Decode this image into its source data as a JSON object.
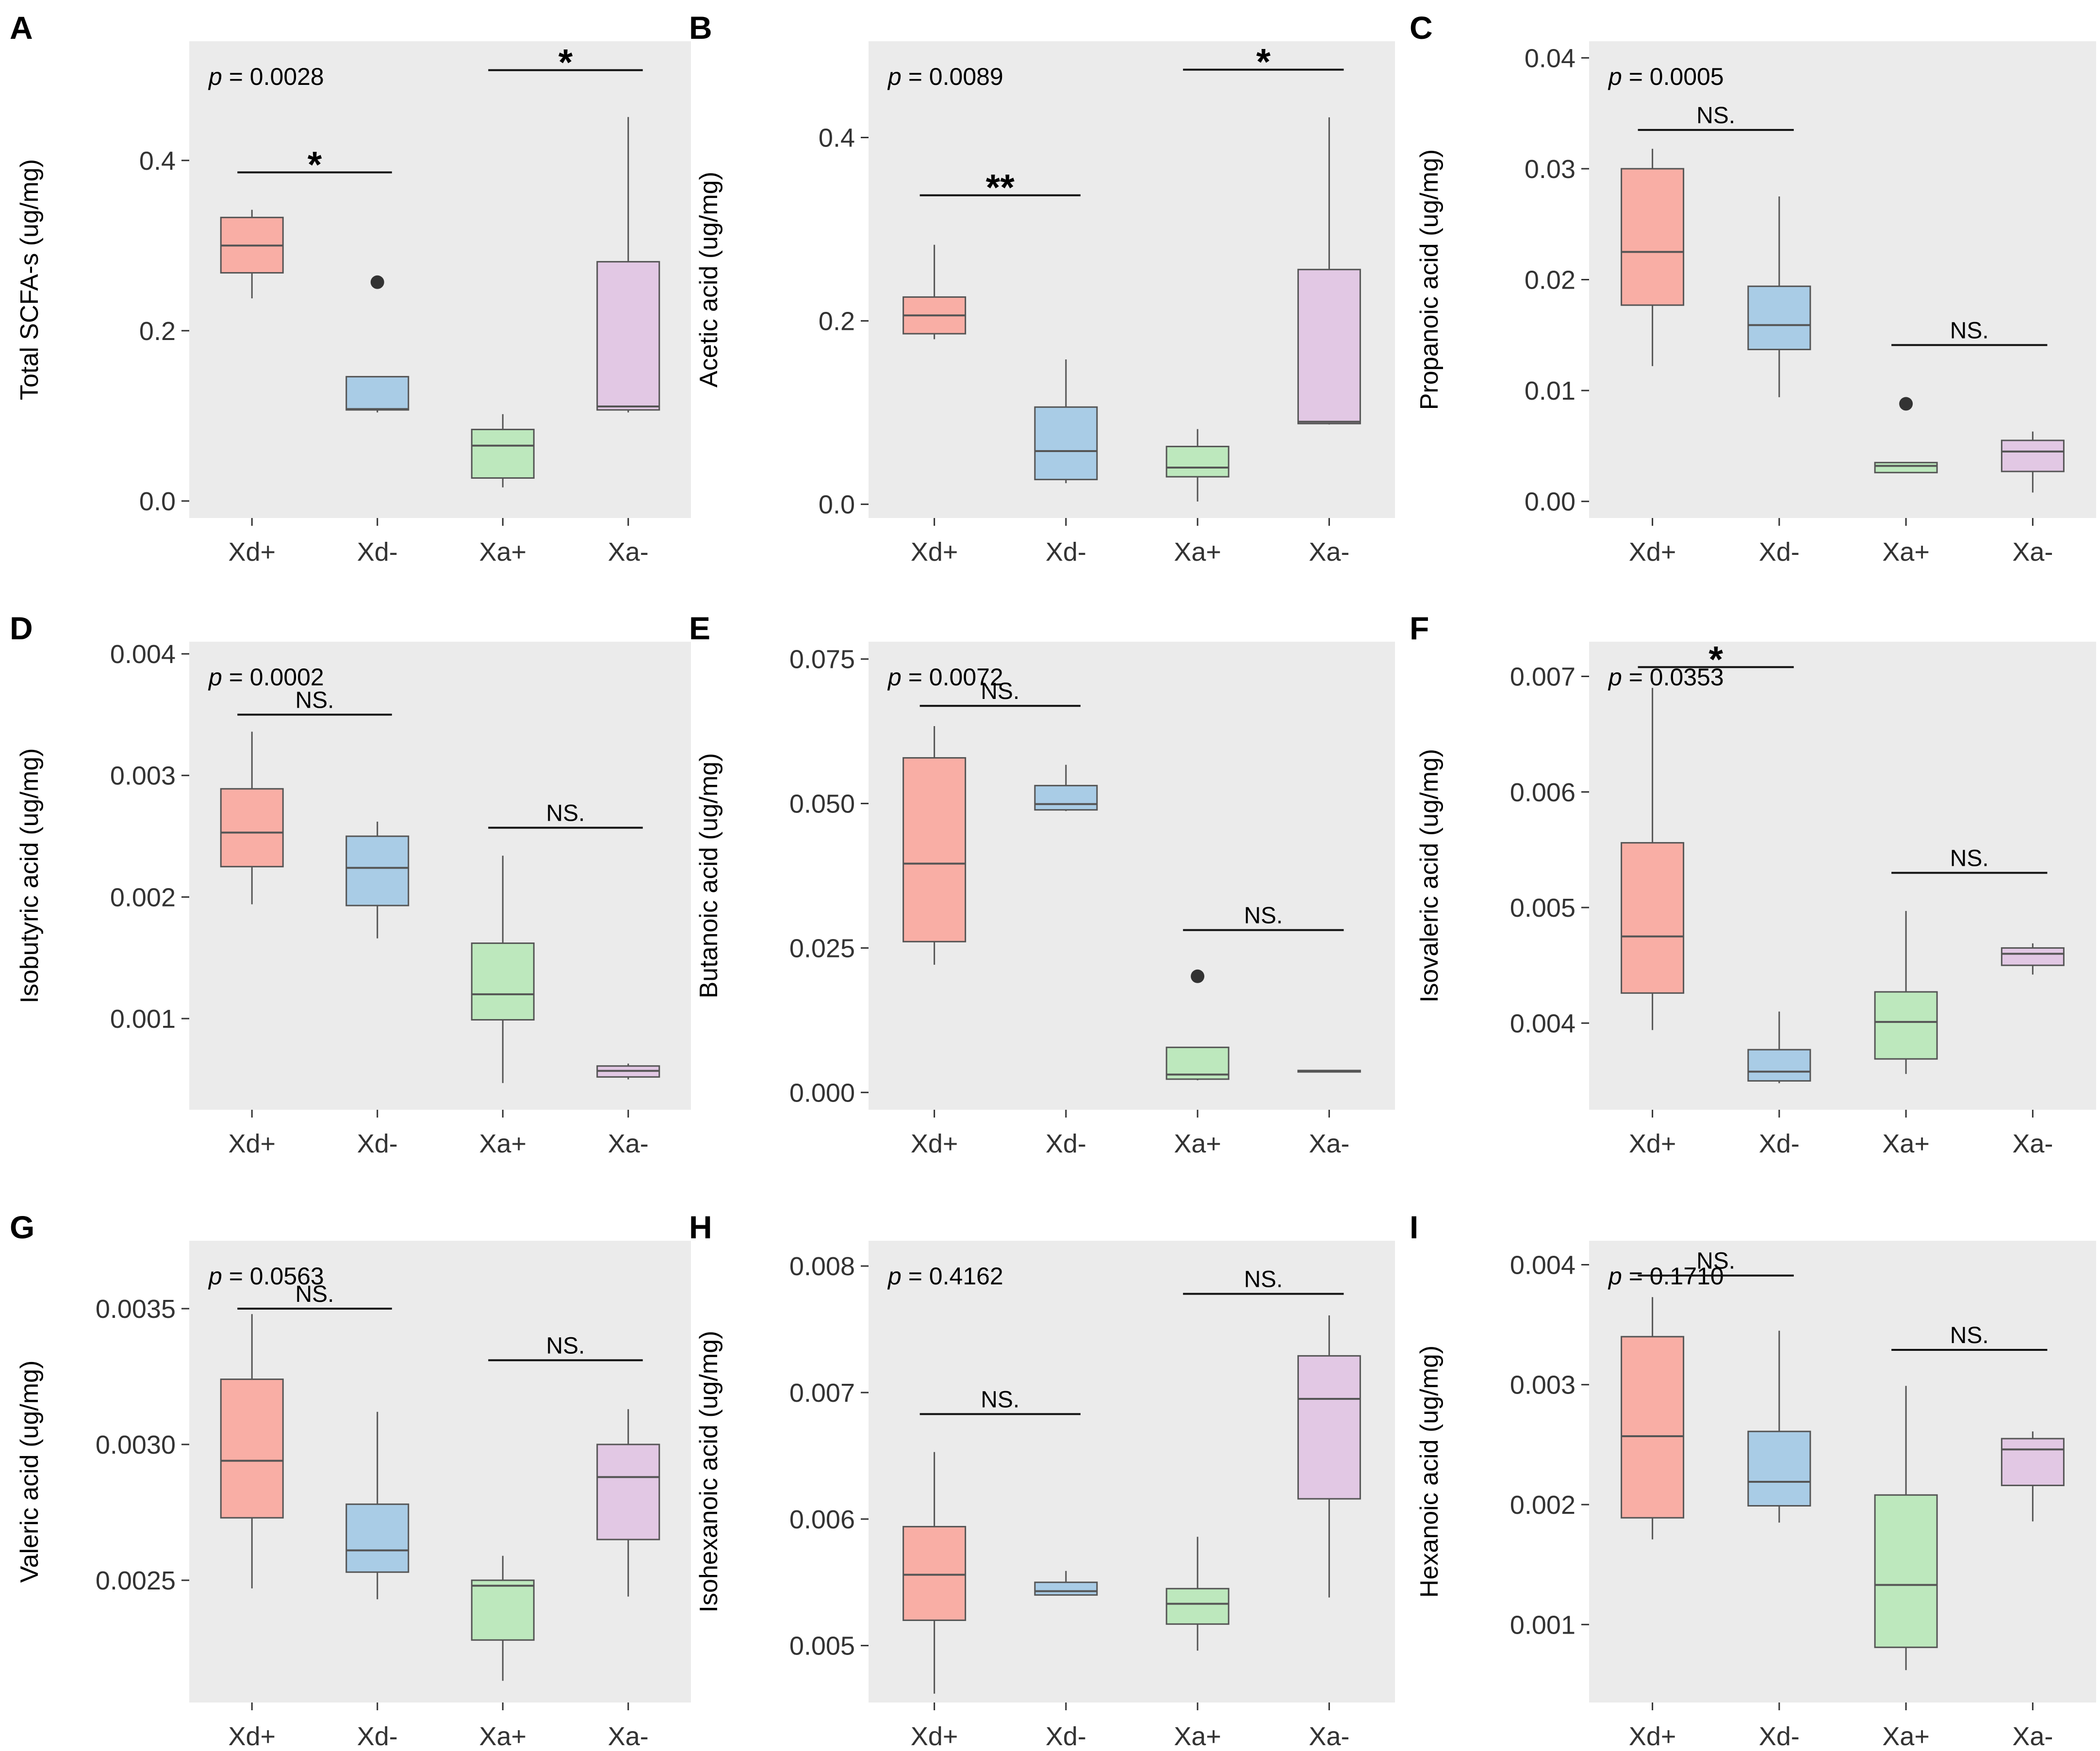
{
  "colors": {
    "panel_bg": "#ebebeb",
    "groups": {
      "Xd+": {
        "fill": "#f9aea5",
        "stroke": "#555555"
      },
      "Xd-": {
        "fill": "#a9cce6",
        "stroke": "#555555"
      },
      "Xa+": {
        "fill": "#bde8bd",
        "stroke": "#555555"
      },
      "Xa-": {
        "fill": "#e2c8e4",
        "stroke": "#555555"
      }
    }
  },
  "chart_data": [
    {
      "panel": "A",
      "type": "boxplot",
      "ylabel": "Total SCFA-s (ug/mg)",
      "ylim": [
        -0.02,
        0.54
      ],
      "yticks": [
        0.0,
        0.2,
        0.4
      ],
      "ytick_labels": [
        "0.0",
        "0.2",
        "0.4"
      ],
      "categories": [
        "Xd+",
        "Xd-",
        "Xa+",
        "Xa-"
      ],
      "p_prefix": "p",
      "p_value": "= 0.0028",
      "boxes": [
        {
          "group": "Xd+",
          "min": 0.238,
          "q1": 0.268,
          "median": 0.3,
          "q3": 0.333,
          "max": 0.342,
          "outliers": []
        },
        {
          "group": "Xd-",
          "min": 0.104,
          "q1": 0.107,
          "median": 0.108,
          "q3": 0.146,
          "max": 0.146,
          "outliers": [
            0.257
          ]
        },
        {
          "group": "Xa+",
          "min": 0.016,
          "q1": 0.027,
          "median": 0.065,
          "q3": 0.084,
          "max": 0.102,
          "outliers": []
        },
        {
          "group": "Xa-",
          "min": 0.104,
          "q1": 0.107,
          "median": 0.111,
          "q3": 0.281,
          "max": 0.451,
          "outliers": []
        }
      ],
      "comparisons": [
        {
          "from": 0,
          "to": 1,
          "y": 0.386,
          "label": "*"
        },
        {
          "from": 2,
          "to": 3,
          "y": 0.506,
          "label": "*"
        }
      ]
    },
    {
      "panel": "B",
      "type": "boxplot",
      "ylabel": "Acetic acid (ug/mg)",
      "ylim": [
        -0.015,
        0.505
      ],
      "yticks": [
        0.0,
        0.2,
        0.4
      ],
      "ytick_labels": [
        "0.0",
        "0.2",
        "0.4"
      ],
      "categories": [
        "Xd+",
        "Xd-",
        "Xa+",
        "Xa-"
      ],
      "p_prefix": "p",
      "p_value": "= 0.0089",
      "boxes": [
        {
          "group": "Xd+",
          "min": 0.18,
          "q1": 0.186,
          "median": 0.206,
          "q3": 0.226,
          "max": 0.283,
          "outliers": []
        },
        {
          "group": "Xd-",
          "min": 0.023,
          "q1": 0.027,
          "median": 0.058,
          "q3": 0.106,
          "max": 0.158,
          "outliers": []
        },
        {
          "group": "Xa+",
          "min": 0.003,
          "q1": 0.03,
          "median": 0.04,
          "q3": 0.063,
          "max": 0.082,
          "outliers": []
        },
        {
          "group": "Xa-",
          "min": 0.087,
          "q1": 0.088,
          "median": 0.09,
          "q3": 0.256,
          "max": 0.422,
          "outliers": []
        }
      ],
      "comparisons": [
        {
          "from": 0,
          "to": 1,
          "y": 0.337,
          "label": "**"
        },
        {
          "from": 2,
          "to": 3,
          "y": 0.474,
          "label": "*"
        }
      ]
    },
    {
      "panel": "C",
      "type": "boxplot",
      "ylabel": "Propanoic acid (ug/mg)",
      "ylim": [
        -0.0015,
        0.0415
      ],
      "yticks": [
        0.0,
        0.01,
        0.02,
        0.03,
        0.04
      ],
      "ytick_labels": [
        "0.00",
        "0.01",
        "0.02",
        "0.03",
        "0.04"
      ],
      "categories": [
        "Xd+",
        "Xd-",
        "Xa+",
        "Xa-"
      ],
      "p_prefix": "p",
      "p_value": "= 0.0005",
      "boxes": [
        {
          "group": "Xd+",
          "min": 0.0122,
          "q1": 0.0177,
          "median": 0.0225,
          "q3": 0.03,
          "max": 0.0318,
          "outliers": []
        },
        {
          "group": "Xd-",
          "min": 0.0094,
          "q1": 0.0137,
          "median": 0.0159,
          "q3": 0.0194,
          "max": 0.0275,
          "outliers": []
        },
        {
          "group": "Xa+",
          "min": 0.0026,
          "q1": 0.0026,
          "median": 0.0032,
          "q3": 0.0035,
          "max": 0.0035,
          "outliers": [
            0.0088
          ]
        },
        {
          "group": "Xa-",
          "min": 0.0008,
          "q1": 0.0027,
          "median": 0.0045,
          "q3": 0.0055,
          "max": 0.0063,
          "outliers": []
        }
      ],
      "comparisons": [
        {
          "from": 0,
          "to": 1,
          "y": 0.0335,
          "label": "NS."
        },
        {
          "from": 2,
          "to": 3,
          "y": 0.0141,
          "label": "NS."
        }
      ]
    },
    {
      "panel": "D",
      "type": "boxplot",
      "ylabel": "Isobutyric acid (ug/mg)",
      "ylim": [
        0.00025,
        0.0041
      ],
      "yticks": [
        0.001,
        0.002,
        0.003,
        0.004
      ],
      "ytick_labels": [
        "0.001",
        "0.002",
        "0.003",
        "0.004"
      ],
      "categories": [
        "Xd+",
        "Xd-",
        "Xa+",
        "Xa-"
      ],
      "p_prefix": "p",
      "p_value": "= 0.0002",
      "boxes": [
        {
          "group": "Xd+",
          "min": 0.00194,
          "q1": 0.00225,
          "median": 0.00253,
          "q3": 0.00289,
          "max": 0.00336,
          "outliers": []
        },
        {
          "group": "Xd-",
          "min": 0.00166,
          "q1": 0.00193,
          "median": 0.00224,
          "q3": 0.0025,
          "max": 0.00262,
          "outliers": []
        },
        {
          "group": "Xa+",
          "min": 0.00047,
          "q1": 0.00099,
          "median": 0.0012,
          "q3": 0.00162,
          "max": 0.00234,
          "outliers": []
        },
        {
          "group": "Xa-",
          "min": 0.0005,
          "q1": 0.00052,
          "median": 0.00057,
          "q3": 0.00061,
          "max": 0.00063,
          "outliers": []
        }
      ],
      "comparisons": [
        {
          "from": 0,
          "to": 1,
          "y": 0.0035,
          "label": "NS."
        },
        {
          "from": 2,
          "to": 3,
          "y": 0.00257,
          "label": "NS."
        }
      ]
    },
    {
      "panel": "E",
      "type": "boxplot",
      "ylabel": "Butanoic acid (ug/mg)",
      "ylim": [
        -0.003,
        0.078
      ],
      "yticks": [
        0.0,
        0.025,
        0.05,
        0.075
      ],
      "ytick_labels": [
        "0.000",
        "0.025",
        "0.050",
        "0.075"
      ],
      "categories": [
        "Xd+",
        "Xd-",
        "Xa+",
        "Xa-"
      ],
      "p_prefix": "p",
      "p_value": "= 0.0072",
      "boxes": [
        {
          "group": "Xd+",
          "min": 0.0221,
          "q1": 0.0261,
          "median": 0.0396,
          "q3": 0.0579,
          "max": 0.0634,
          "outliers": []
        },
        {
          "group": "Xd-",
          "min": 0.0487,
          "q1": 0.0489,
          "median": 0.0499,
          "q3": 0.0531,
          "max": 0.0567,
          "outliers": []
        },
        {
          "group": "Xa+",
          "min": 0.0021,
          "q1": 0.0023,
          "median": 0.0031,
          "q3": 0.0078,
          "max": 0.0078,
          "outliers": [
            0.0201
          ]
        },
        {
          "group": "Xa-",
          "min": 0.0035,
          "q1": 0.0036,
          "median": 0.0037,
          "q3": 0.0038,
          "max": 0.0038,
          "outliers": []
        }
      ],
      "comparisons": [
        {
          "from": 0,
          "to": 1,
          "y": 0.0669,
          "label": "NS."
        },
        {
          "from": 2,
          "to": 3,
          "y": 0.0281,
          "label": "NS."
        }
      ]
    },
    {
      "panel": "F",
      "type": "boxplot",
      "ylabel": "Isovaleric acid (ug/mg)",
      "ylim": [
        0.00325,
        0.0073
      ],
      "yticks": [
        0.004,
        0.005,
        0.006,
        0.007
      ],
      "ytick_labels": [
        "0.004",
        "0.005",
        "0.006",
        "0.007"
      ],
      "categories": [
        "Xd+",
        "Xd-",
        "Xa+",
        "Xa-"
      ],
      "p_prefix": "p",
      "p_value": "= 0.0353",
      "boxes": [
        {
          "group": "Xd+",
          "min": 0.00394,
          "q1": 0.00426,
          "median": 0.00475,
          "q3": 0.00556,
          "max": 0.0069,
          "outliers": []
        },
        {
          "group": "Xd-",
          "min": 0.00348,
          "q1": 0.0035,
          "median": 0.00358,
          "q3": 0.00377,
          "max": 0.0041,
          "outliers": []
        },
        {
          "group": "Xa+",
          "min": 0.00356,
          "q1": 0.00369,
          "median": 0.00401,
          "q3": 0.00427,
          "max": 0.00497,
          "outliers": []
        },
        {
          "group": "Xa-",
          "min": 0.00442,
          "q1": 0.0045,
          "median": 0.0046,
          "q3": 0.00465,
          "max": 0.00469,
          "outliers": []
        }
      ],
      "comparisons": [
        {
          "from": 0,
          "to": 1,
          "y": 0.00708,
          "label": "*"
        },
        {
          "from": 2,
          "to": 3,
          "y": 0.0053,
          "label": "NS."
        }
      ]
    },
    {
      "panel": "G",
      "type": "boxplot",
      "ylabel": "Valeric acid (ug/mg)",
      "ylim": [
        0.00205,
        0.00375
      ],
      "yticks": [
        0.0025,
        0.003,
        0.0035
      ],
      "ytick_labels": [
        "0.0025",
        "0.0030",
        "0.0035"
      ],
      "categories": [
        "Xd+",
        "Xd-",
        "Xa+",
        "Xa-"
      ],
      "p_prefix": "p",
      "p_value": "= 0.0563",
      "boxes": [
        {
          "group": "Xd+",
          "min": 0.00247,
          "q1": 0.00273,
          "median": 0.00294,
          "q3": 0.00324,
          "max": 0.00348,
          "outliers": []
        },
        {
          "group": "Xd-",
          "min": 0.00243,
          "q1": 0.00253,
          "median": 0.00261,
          "q3": 0.00278,
          "max": 0.00312,
          "outliers": []
        },
        {
          "group": "Xa+",
          "min": 0.00213,
          "q1": 0.00228,
          "median": 0.00248,
          "q3": 0.0025,
          "max": 0.00259,
          "outliers": []
        },
        {
          "group": "Xa-",
          "min": 0.00244,
          "q1": 0.00265,
          "median": 0.00288,
          "q3": 0.003,
          "max": 0.00313,
          "outliers": []
        }
      ],
      "comparisons": [
        {
          "from": 0,
          "to": 1,
          "y": 0.0035,
          "label": "NS."
        },
        {
          "from": 2,
          "to": 3,
          "y": 0.00331,
          "label": "NS."
        }
      ]
    },
    {
      "panel": "H",
      "type": "boxplot",
      "ylabel": "Isohexanoic acid (ug/mg)",
      "ylim": [
        0.00455,
        0.0082
      ],
      "yticks": [
        0.005,
        0.006,
        0.007,
        0.008
      ],
      "ytick_labels": [
        "0.005",
        "0.006",
        "0.007",
        "0.008"
      ],
      "categories": [
        "Xd+",
        "Xd-",
        "Xa+",
        "Xa-"
      ],
      "p_prefix": "p",
      "p_value": "= 0.4162",
      "boxes": [
        {
          "group": "Xd+",
          "min": 0.00462,
          "q1": 0.0052,
          "median": 0.00556,
          "q3": 0.00594,
          "max": 0.00653,
          "outliers": []
        },
        {
          "group": "Xd-",
          "min": 0.0054,
          "q1": 0.0054,
          "median": 0.00543,
          "q3": 0.0055,
          "max": 0.00559,
          "outliers": []
        },
        {
          "group": "Xa+",
          "min": 0.00496,
          "q1": 0.00517,
          "median": 0.00533,
          "q3": 0.00545,
          "max": 0.00586,
          "outliers": []
        },
        {
          "group": "Xa-",
          "min": 0.00538,
          "q1": 0.00616,
          "median": 0.00695,
          "q3": 0.00729,
          "max": 0.00761,
          "outliers": []
        }
      ],
      "comparisons": [
        {
          "from": 0,
          "to": 1,
          "y": 0.00683,
          "label": "NS."
        },
        {
          "from": 2,
          "to": 3,
          "y": 0.00778,
          "label": "NS."
        }
      ]
    },
    {
      "panel": "I",
      "type": "boxplot",
      "ylabel": "Hexanoic acid (ug/mg)",
      "ylim": [
        0.00035,
        0.0042
      ],
      "yticks": [
        0.001,
        0.002,
        0.003,
        0.004
      ],
      "ytick_labels": [
        "0.001",
        "0.002",
        "0.003",
        "0.004"
      ],
      "categories": [
        "Xd+",
        "Xd-",
        "Xa+",
        "Xa-"
      ],
      "p_prefix": "p",
      "p_value": "= 0.1710",
      "boxes": [
        {
          "group": "Xd+",
          "min": 0.00171,
          "q1": 0.00189,
          "median": 0.00257,
          "q3": 0.0034,
          "max": 0.00373,
          "outliers": []
        },
        {
          "group": "Xd-",
          "min": 0.00185,
          "q1": 0.00199,
          "median": 0.00219,
          "q3": 0.00261,
          "max": 0.00345,
          "outliers": []
        },
        {
          "group": "Xa+",
          "min": 0.00062,
          "q1": 0.00081,
          "median": 0.00133,
          "q3": 0.00208,
          "max": 0.00299,
          "outliers": []
        },
        {
          "group": "Xa-",
          "min": 0.00186,
          "q1": 0.00216,
          "median": 0.00246,
          "q3": 0.00255,
          "max": 0.00261,
          "outliers": []
        }
      ],
      "comparisons": [
        {
          "from": 0,
          "to": 1,
          "y": 0.00391,
          "label": "NS."
        },
        {
          "from": 2,
          "to": 3,
          "y": 0.00329,
          "label": "NS."
        }
      ]
    }
  ]
}
